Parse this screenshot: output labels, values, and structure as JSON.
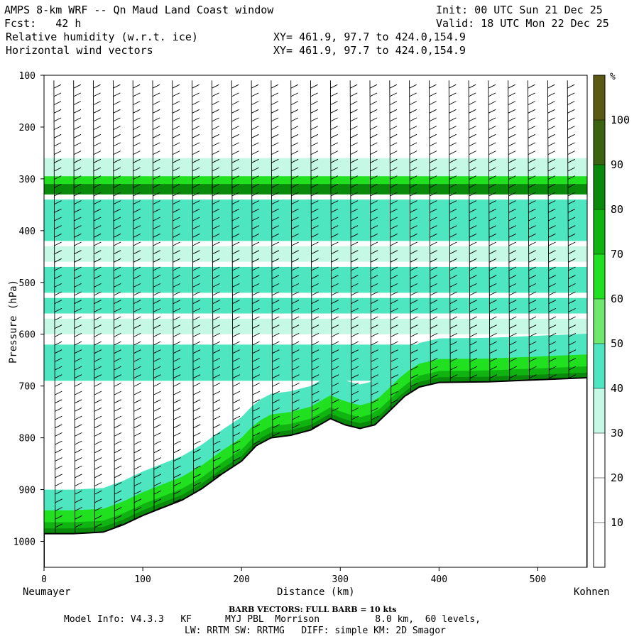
{
  "header": {
    "title": "AMPS 8-km WRF -- Qn Maud Land Coast window",
    "init": "Init: 00 UTC Sun 21 Dec 25",
    "fcst": "Fcst:   42 h",
    "valid": "Valid: 18 UTC Mon 22 Dec 25",
    "field1": "Relative humidity (w.r.t. ice)",
    "field2": "Horizontal wind vectors",
    "xy1": "XY= 461.9, 97.7 to 424.0,154.9",
    "xy2": "XY= 461.9, 97.7 to 424.0,154.9"
  },
  "footer": {
    "barb_note": "BARB VECTORS:  FULL BARB = 10 kts",
    "model_line1": "Model Info: V4.3.3   KF      MYJ PBL  Morrison          8.0 km,  60 levels,",
    "model_line2": "LW: RRTM SW: RRTMG   DIFF: simple KM: 2D Smagor"
  },
  "chart_data": {
    "type": "cross-section",
    "title": "Relative humidity (w.r.t. ice) / Horizontal wind vectors",
    "xlabel": "Distance (km)",
    "ylabel": "Pressure (hPa)",
    "xlim": [
      0,
      550
    ],
    "ylim_hpa": [
      1050,
      100
    ],
    "x_ticks": [
      0,
      100,
      200,
      300,
      400,
      500
    ],
    "y_ticks": [
      100,
      200,
      300,
      400,
      500,
      600,
      700,
      800,
      900,
      1000
    ],
    "left_endpoint": "Neumayer",
    "right_endpoint": "Kohnen",
    "colorbar_unit": "%",
    "colorbar_levels": [
      10,
      20,
      30,
      40,
      50,
      60,
      70,
      80,
      90,
      100
    ],
    "colorbar_colors": [
      "#ffffff",
      "#ffffff",
      "#ffffff",
      "#c6f8e6",
      "#4ee6c0",
      "#6ee86e",
      "#20e020",
      "#10b410",
      "#0a8a0a",
      "#3c6410",
      "#5a5a14"
    ],
    "terrain_hpa": [
      [
        0,
        985
      ],
      [
        30,
        985
      ],
      [
        60,
        982
      ],
      [
        80,
        968
      ],
      [
        100,
        950
      ],
      [
        120,
        935
      ],
      [
        140,
        920
      ],
      [
        160,
        898
      ],
      [
        180,
        870
      ],
      [
        200,
        845
      ],
      [
        215,
        815
      ],
      [
        230,
        800
      ],
      [
        250,
        795
      ],
      [
        270,
        785
      ],
      [
        290,
        763
      ],
      [
        305,
        775
      ],
      [
        320,
        782
      ],
      [
        335,
        775
      ],
      [
        350,
        748
      ],
      [
        365,
        720
      ],
      [
        380,
        702
      ],
      [
        400,
        693
      ],
      [
        450,
        692
      ],
      [
        500,
        688
      ],
      [
        550,
        684
      ]
    ],
    "rh_bands": [
      {
        "bottom": 300,
        "top": 260,
        "rh": 35
      },
      {
        "bottom": 330,
        "top": 295,
        "rh": 65
      },
      {
        "bottom": 330,
        "top": 310,
        "rh": 82
      },
      {
        "bottom": 420,
        "top": 340,
        "rh": 48
      },
      {
        "bottom": 460,
        "top": 430,
        "rh": 35
      },
      {
        "bottom": 520,
        "top": 470,
        "rh": 48
      },
      {
        "bottom": 560,
        "top": 530,
        "rh": 42
      },
      {
        "bottom": 600,
        "top": 570,
        "rh": 35
      },
      {
        "bottom": 690,
        "top": 620,
        "rh": 45
      }
    ]
  }
}
